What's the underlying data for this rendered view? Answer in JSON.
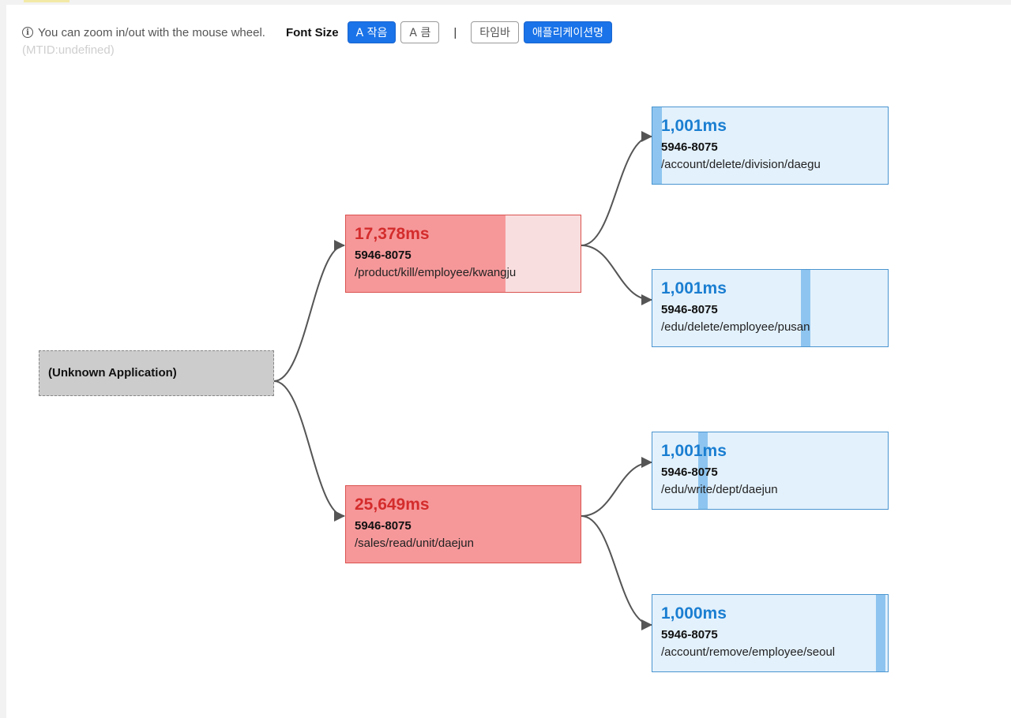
{
  "toolbar": {
    "info_icon": "info-circle-icon",
    "hint": "You can zoom in/out with the mouse wheel.",
    "font_size_label": "Font Size",
    "btn_small": "A 작음",
    "btn_large": "A 큼",
    "separator": "|",
    "btn_timebar": "타임바",
    "btn_appname": "애플리케이션명"
  },
  "mtid": "(MTID:undefined)",
  "colors": {
    "slow_bg": "#f9dedf",
    "slow_fill": "#f6989a",
    "slow_text": "#d42c2c",
    "normal_bg": "#e3f1fc",
    "normal_fill": "#8ec5f0",
    "normal_text": "#1a7ed1",
    "primary_button": "#1a73e8"
  },
  "graph": {
    "root": {
      "label": "(Unknown Application)"
    },
    "level1": [
      {
        "ms": "17,378ms",
        "code": "5946-8075",
        "path": "/product/kill/employee/kwangju",
        "status": "slow",
        "timebar_start": 0.0,
        "timebar_end": 0.68
      },
      {
        "ms": "25,649ms",
        "code": "5946-8075",
        "path": "/sales/read/unit/daejun",
        "status": "slow",
        "timebar_start": 0.0,
        "timebar_end": 1.0
      }
    ],
    "level2": [
      {
        "ms": "1,001ms",
        "code": "5946-8075",
        "path": "/account/delete/division/daegu",
        "status": "normal",
        "timebar_start": 0.0,
        "timebar_end": 0.04
      },
      {
        "ms": "1,001ms",
        "code": "5946-8075",
        "path": "/edu/delete/employee/pusan",
        "status": "normal",
        "timebar_start": 0.63,
        "timebar_end": 0.67
      },
      {
        "ms": "1,001ms",
        "code": "5946-8075",
        "path": "/edu/write/dept/daejun",
        "status": "normal",
        "timebar_start": 0.195,
        "timebar_end": 0.235
      },
      {
        "ms": "1,000ms",
        "code": "5946-8075",
        "path": "/account/remove/employee/seoul",
        "status": "normal",
        "timebar_start": 0.95,
        "timebar_end": 0.99
      }
    ]
  }
}
